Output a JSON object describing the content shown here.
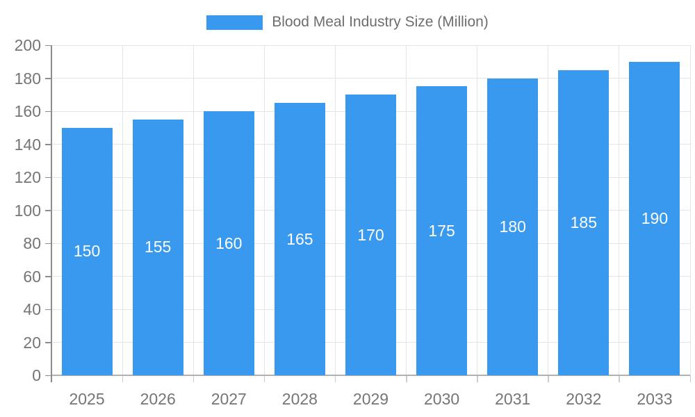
{
  "legend": {
    "label": "Blood Meal Industry Size (Million)"
  },
  "chart_data": {
    "type": "bar",
    "title": "Blood Meal Industry Size (Million)",
    "categories": [
      "2025",
      "2026",
      "2027",
      "2028",
      "2029",
      "2030",
      "2031",
      "2032",
      "2033"
    ],
    "series": [
      {
        "name": "Blood Meal Industry Size (Million)",
        "values": [
          150,
          155,
          160,
          165,
          170,
          175,
          180,
          185,
          190
        ]
      }
    ],
    "xlabel": "",
    "ylabel": "",
    "ylim": [
      0,
      200
    ],
    "ytick_step": 20,
    "yticks": [
      0,
      20,
      40,
      60,
      80,
      100,
      120,
      140,
      160,
      180,
      200
    ],
    "grid": true,
    "legend_position": "top",
    "bar_value_labels_shown": true
  },
  "colors": {
    "bar": "#3899ee",
    "bar_label": "#ffffff",
    "grid_line": "#e4e4e4",
    "y_axis_line": "#8c8c8c",
    "x_axis_line": "#b0b0b0",
    "x_tick": "#cccccc",
    "axis_text": "#757575",
    "legend_text": "#6e6e6e",
    "background": "#ffffff"
  }
}
